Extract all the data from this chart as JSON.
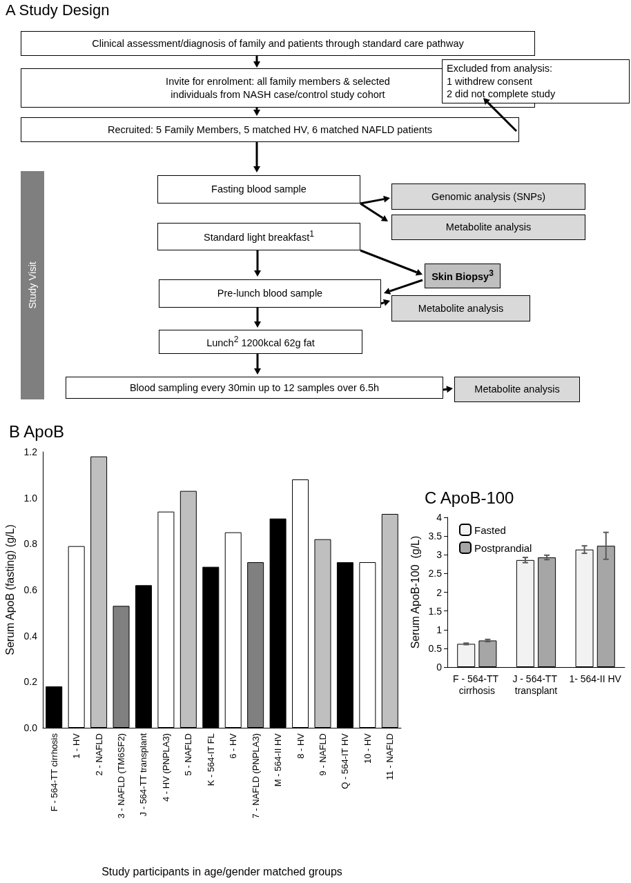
{
  "chart_data": [
    {
      "type": "other",
      "title": "A Study Design",
      "annotations": [
        "Clinical assessment/diagnosis of family and patients through standard care pathway",
        "Invite for enrolment: all family members  & selected individuals from NASH case/control study cohort",
        "Recruited: 5 Family Members, 5 matched HV, 6 matched NAFLD patients",
        "Excluded from analysis:\n1 withdrew consent\n2 did not complete study",
        "Fasting blood sample",
        "Genomic analysis (SNPs)",
        "Metabolite analysis",
        "Standard light breakfast$^{1}$",
        "Skin Biopsy$^{3}$",
        "Pre-lunch blood sample",
        "Metabolite analysis",
        "Lunch$^{2}$ 1200kcal 62g fat",
        "Blood sampling every 30min up to 12 samples over 6.5h",
        "Metabolite analysis",
        "Study Visit"
      ]
    },
    {
      "type": "bar",
      "title": "B ApoB",
      "xlabel": "Study participants in age/gender matched groups",
      "ylabel": "Serum ApoB (fasting) (g/L)",
      "categories": [
        "F - 564-TT cirrhosis",
        "1 - HV",
        "2 - NAFLD",
        "3 - NAFLD (TM6SF2)",
        "J - 564-TT transplant",
        "4 - HV (PNPLA3)",
        "5 - NAFLD",
        "K - 564-IT FL",
        "6 - HV",
        "7 - NAFLD (PNPLA3)",
        "M - 564-II HV",
        "8 - HV",
        "9 - NAFLD",
        "Q - 564-IT HV",
        "10 - HV",
        "11 - NAFLD"
      ],
      "values": [
        0.18,
        0.79,
        1.18,
        0.53,
        0.62,
        0.94,
        1.03,
        0.7,
        0.85,
        0.72,
        0.91,
        1.08,
        0.82,
        0.72,
        0.72,
        0.93
      ],
      "colors": [
        "#000000",
        "#ffffff",
        "#bfbfbf",
        "#808080",
        "#000000",
        "#ffffff",
        "#bfbfbf",
        "#000000",
        "#ffffff",
        "#808080",
        "#000000",
        "#ffffff",
        "#bfbfbf",
        "#000000",
        "#ffffff",
        "#bfbfbf"
      ],
      "ylim": [
        0,
        1.2
      ],
      "yticks": [
        {
          "value": 0,
          "label": "0.0"
        },
        {
          "value": 0.2,
          "label": "0.2"
        },
        {
          "value": 0.4,
          "label": "0.4"
        },
        {
          "value": 0.6,
          "label": "0.6"
        },
        {
          "value": 0.8,
          "label": "0.8"
        },
        {
          "value": 1,
          "label": "1.0"
        },
        {
          "value": 1.2,
          "label": "1.2"
        }
      ],
      "grid": false,
      "legend": false
    },
    {
      "type": "bar",
      "title": "C ApoB-100",
      "ylabel": "Serum ApoB-100  (g/L)",
      "categories": [
        "F - 564-TT cirrhosis",
        "J - 564-TT transplant",
        "1- 564-II HV"
      ],
      "series": [
        {
          "name": "Fasted",
          "color": "#f2f2f2",
          "values": [
            0.62,
            2.86,
            3.14
          ],
          "errors": [
            0.02,
            0.07,
            0.1
          ]
        },
        {
          "name": "Postprandial",
          "color": "#a6a6a6",
          "values": [
            0.71,
            2.93,
            3.24
          ],
          "errors": [
            0.03,
            0.06,
            0.36
          ]
        }
      ],
      "ylim": [
        0,
        4
      ],
      "yticks": [
        0,
        0.5,
        1,
        1.5,
        2,
        2.5,
        3,
        3.5,
        4
      ],
      "grid": false,
      "legend": "top left"
    }
  ]
}
